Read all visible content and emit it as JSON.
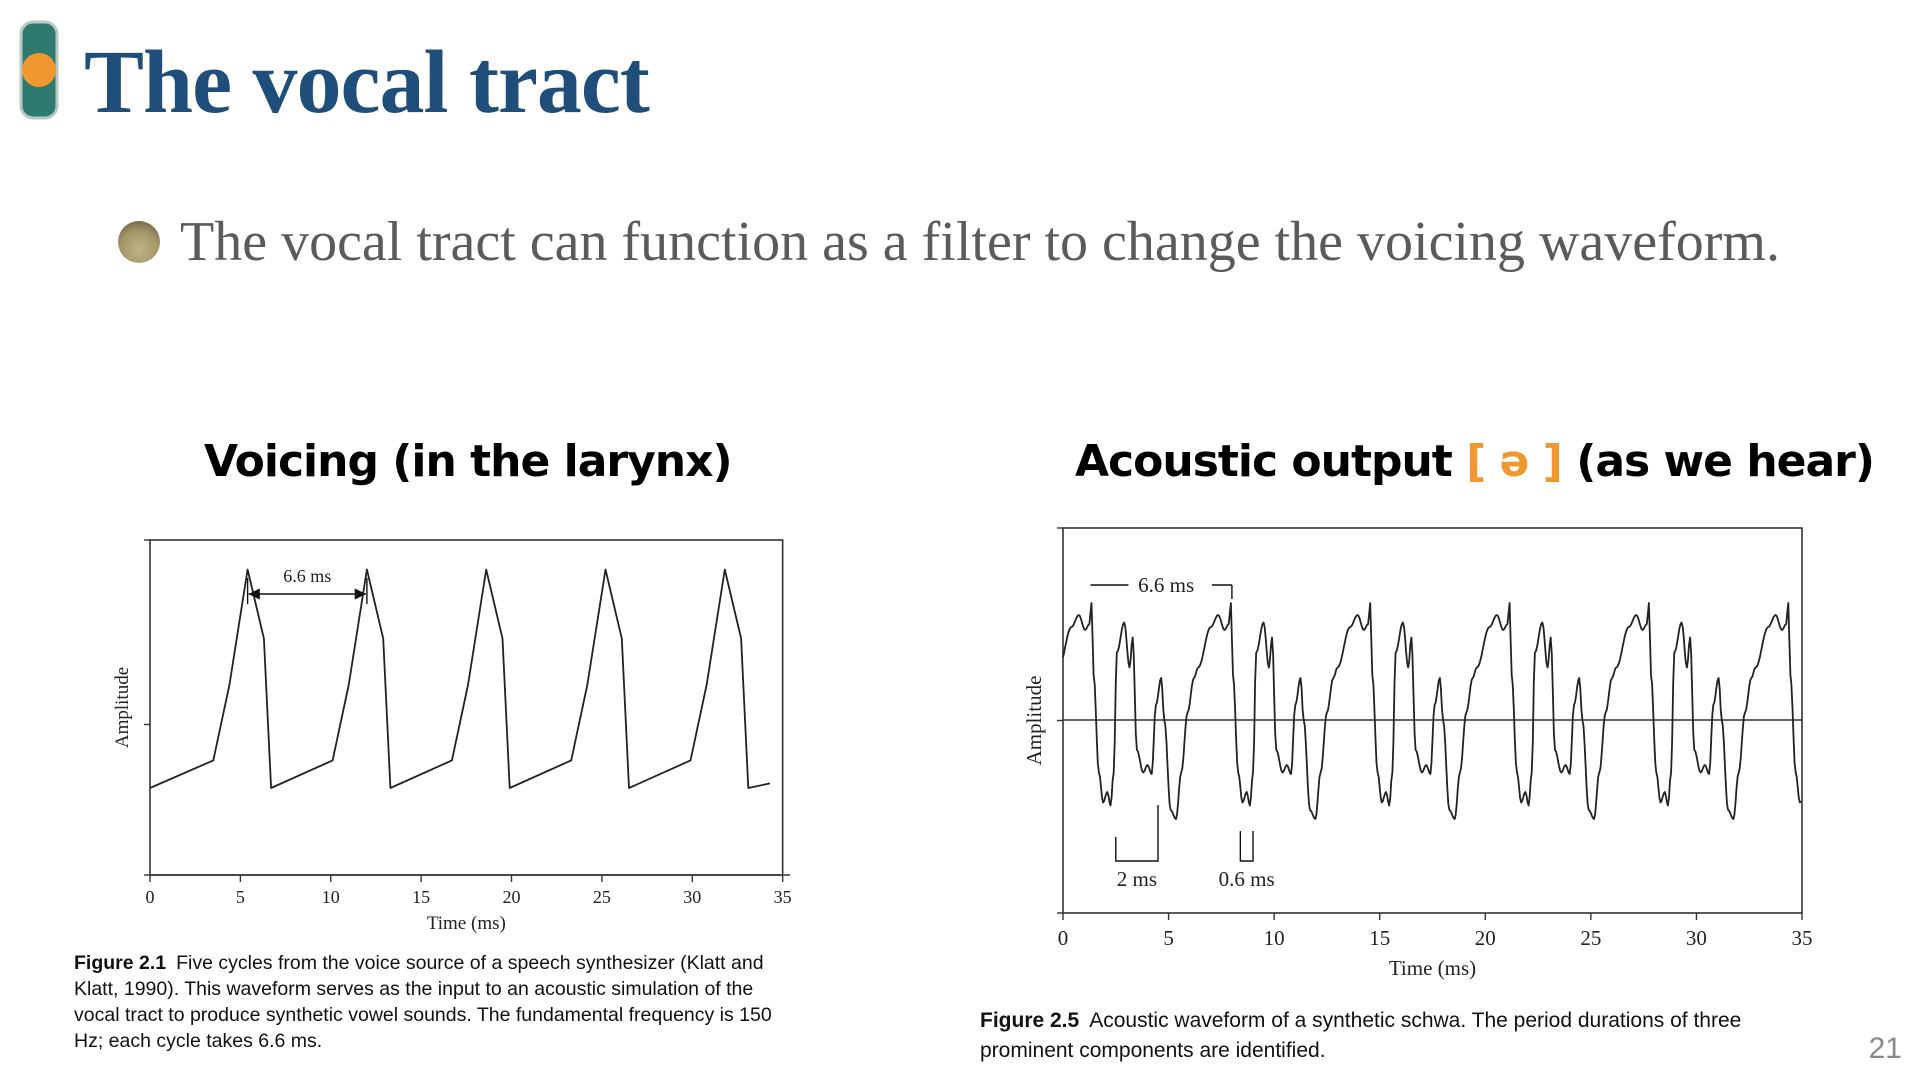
{
  "slide": {
    "title": "The vocal tract",
    "bullet": "The vocal tract can function as a filter to change the voicing waveform.",
    "page_number": "21",
    "logo_icon": "traffic-light-logo-icon",
    "colors": {
      "title": "#1f4e7a",
      "accent": "#f0972f",
      "logo_body": "#2e7a6f",
      "bullet_text": "#5b5b5b"
    }
  },
  "left_panel": {
    "heading": "Voicing (in the larynx)",
    "caption_label": "Figure 2.1",
    "caption_text": "Five cycles from the voice source of a speech synthesizer (Klatt and Klatt, 1990). This waveform serves as the input to an acoustic simulation of the vocal tract to produce synthetic vowel sounds. The fundamental frequency is 150 Hz; each cycle takes 6.6 ms."
  },
  "right_panel": {
    "heading_pre": "Acoustic output",
    "heading_ipa": "[ ə ]",
    "heading_post": "(as we hear)",
    "caption_label": "Figure 2.5",
    "caption_text": "Acoustic waveform of a synthetic schwa. The period durations of three prominent components are identified."
  },
  "chart_data": [
    {
      "type": "line",
      "xlabel": "Time (ms)",
      "ylabel": "Amplitude",
      "xlim": [
        0,
        35
      ],
      "ylim": [
        -1,
        1
      ],
      "xticks": [
        0,
        5,
        10,
        15,
        20,
        25,
        30,
        35
      ],
      "grid": false,
      "period_ms": 6.6,
      "cycles": 5,
      "annotations": [
        {
          "label": "6.6 ms",
          "from_ms": 5.4,
          "to_ms": 12.0
        }
      ],
      "series": [
        {
          "values_x": [
            0,
            3.5,
            4.4,
            5.4,
            6.3,
            6.7,
            10.1,
            11.0,
            12.0,
            12.9,
            13.3,
            16.7,
            17.6,
            18.6,
            19.5,
            19.9,
            23.3,
            24.2,
            25.2,
            26.1,
            26.5,
            29.9,
            30.8,
            31.8,
            32.7,
            33.1,
            34.3
          ],
          "values_y": [
            -0.35,
            -0.23,
            0.1,
            0.6,
            0.3,
            -0.35,
            -0.23,
            0.1,
            0.6,
            0.3,
            -0.35,
            -0.23,
            0.1,
            0.6,
            0.3,
            -0.35,
            -0.23,
            0.1,
            0.6,
            0.3,
            -0.35,
            -0.23,
            0.1,
            0.6,
            0.3,
            -0.35,
            -0.33
          ]
        }
      ]
    },
    {
      "type": "line",
      "xlabel": "Time (ms)",
      "ylabel": "Amplitude",
      "xlim": [
        0,
        35
      ],
      "ylim": [
        -1,
        1
      ],
      "xticks": [
        0,
        5,
        10,
        15,
        20,
        25,
        30,
        35
      ],
      "grid": false,
      "period_ms": 6.6,
      "annotations": [
        {
          "label": "6.6 ms",
          "from_ms": 1.3,
          "to_ms": 8.0
        },
        {
          "label": "2 ms",
          "from_ms": 2.5,
          "to_ms": 4.5
        },
        {
          "label": "0.6 ms",
          "from_ms": 8.4,
          "to_ms": 9.0
        }
      ]
    }
  ]
}
